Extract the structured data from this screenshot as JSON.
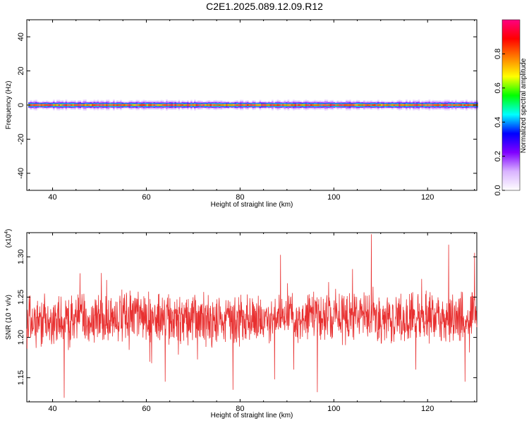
{
  "title": "C2E1.2025.089.12.09.R12",
  "chart_data": [
    {
      "type": "heatmap",
      "xlabel": "Height of straight line (km)",
      "ylabel": "Frequency (Hz)",
      "xlim": [
        34.5,
        130.5
      ],
      "ylim": [
        -50,
        50
      ],
      "xticks": [
        40,
        60,
        80,
        100,
        120
      ],
      "yticks": [
        40,
        20,
        0,
        -20,
        -40
      ],
      "x_tick_labels": [
        "40",
        "60",
        "80",
        "100",
        "120"
      ],
      "y_tick_labels": [
        "40",
        "20",
        "0",
        "-20",
        "-40"
      ],
      "band_center_hz": 0,
      "colorbar": {
        "label": "Normalized spectral amplitude",
        "range": [
          0,
          1
        ],
        "ticks": [
          0.0,
          0.2,
          0.4,
          0.6,
          0.8
        ],
        "tick_labels": [
          "0.0",
          "0.2",
          "0.4",
          "0.6",
          "0.8"
        ],
        "colormap": [
          "#ffffff",
          "#d9b3ff",
          "#8000ff",
          "#0000ff",
          "#00ffff",
          "#00ff00",
          "#ffff00",
          "#ff8000",
          "#ff0000",
          "#ff0080"
        ]
      }
    },
    {
      "type": "line",
      "xlabel": "Height of straight line (km)",
      "ylabel": "SNR (10 * v/v)",
      "y_multiplier": "(x10",
      "y_multiplier_exp": "4",
      "y_multiplier_close": ")",
      "xlim": [
        34.5,
        130.5
      ],
      "ylim": [
        11200,
        13300
      ],
      "xticks": [
        40,
        60,
        80,
        100,
        120
      ],
      "yticks": [
        11500,
        12000,
        12500,
        13000
      ],
      "x_tick_labels": [
        "40",
        "60",
        "80",
        "100",
        "120"
      ],
      "y_tick_labels": [
        "1.15",
        "1.20",
        "1.25",
        "1.30"
      ],
      "color": "#e83030",
      "series_trend": [
        [
          34.5,
          12200
        ],
        [
          60,
          12250
        ],
        [
          80,
          12200
        ],
        [
          100,
          12250
        ],
        [
          130.5,
          12250
        ]
      ],
      "noise_amplitude": 450,
      "notable_points": [
        [
          42.5,
          11250
        ],
        [
          64,
          11450
        ],
        [
          78.5,
          11350
        ],
        [
          96.5,
          11320
        ],
        [
          108,
          13280
        ],
        [
          117.5,
          11600
        ],
        [
          124.5,
          13150
        ],
        [
          128,
          11450
        ],
        [
          130,
          13050
        ]
      ]
    }
  ]
}
